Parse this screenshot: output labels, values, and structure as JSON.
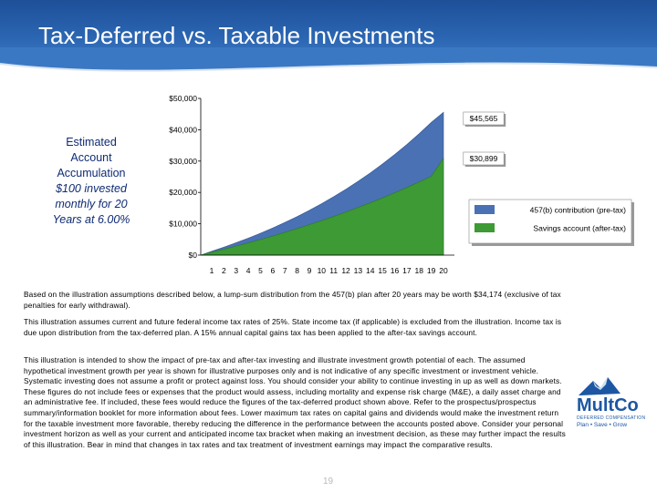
{
  "slide": {
    "title": "Tax-Deferred vs. Taxable Investments",
    "page_number": "19"
  },
  "caption": {
    "line1": "Estimated",
    "line2": "Account",
    "line3": "Accumulation",
    "line4": "$100 invested",
    "line5": "monthly for 20",
    "line6": "Years at 6.00%"
  },
  "chart_data": {
    "type": "area",
    "x": [
      1,
      2,
      3,
      4,
      5,
      6,
      7,
      8,
      9,
      10,
      11,
      12,
      13,
      14,
      15,
      16,
      17,
      18,
      19,
      20
    ],
    "categories": [
      "1",
      "2",
      "3",
      "4",
      "5",
      "6",
      "7",
      "8",
      "9",
      "10",
      "11",
      "12",
      "13",
      "14",
      "15",
      "16",
      "17",
      "18",
      "19",
      "20"
    ],
    "ylim": [
      0,
      50000
    ],
    "yticks": [
      "$0",
      "$10,000",
      "$20,000",
      "$30,000",
      "$40,000",
      "$50,000"
    ],
    "grid": false,
    "legend_position": "right",
    "series": [
      {
        "name": "457(b) contribution (pre-tax)",
        "color": "#4a71b3",
        "values": [
          1234,
          2544,
          3935,
          5411,
          6978,
          8641,
          10407,
          12281,
          14271,
          16384,
          18626,
          21007,
          23535,
          26218,
          29066,
          32090,
          35300,
          38708,
          42326,
          45565
        ],
        "end_label": "$45,565"
      },
      {
        "name": "Savings account (after-tax)",
        "color": "#3d9a34",
        "values": [
          923,
          1881,
          2876,
          3909,
          4982,
          6096,
          7253,
          8454,
          9701,
          10996,
          12341,
          13738,
          15188,
          16694,
          18258,
          19882,
          21569,
          23320,
          25138,
          30899
        ],
        "end_label": "$30,899"
      }
    ]
  },
  "paragraphs": {
    "p1": "Based on the illustration assumptions described below, a lump-sum distribution from the 457(b) plan after 20 years may be worth $34,174 (exclusive of tax penalties for early withdrawal).",
    "p2": "This illustration assumes current and future federal income tax rates of 25%. State income tax (if applicable) is excluded from the illustration. Income tax is due upon distribution from the tax-deferred plan. A 15% annual capital gains tax has been applied to the after-tax savings account.",
    "p3": "This illustration is intended to show the impact of pre-tax and after-tax investing and illustrate investment growth potential of each. The assumed hypothetical investment growth per year is shown for illustrative purposes only and is not indicative of any specific investment or investment vehicle. Systematic investing does not assume a profit or protect against loss. You should consider your ability to continue investing in up as well as down markets. These figures do not include fees or expenses that the product would assess, including mortality and expense risk charge (M&E), a daily asset charge and an administrative fee. If included, these fees would reduce the figures of the tax-deferred product shown above. Refer to the prospectus/prospectus summary/information booklet for more information about fees. Lower maximum tax rates on capital gains and dividends would make the investment return for the taxable investment more favorable, thereby reducing the difference in the performance between the accounts posted above. Consider your personal investment horizon as well as your current and anticipated income tax bracket when making an investment decision, as these may further impact the results of this illustration. Bear in mind that changes in tax rates and tax treatment of investment earnings may impact the comparative results."
  },
  "logo": {
    "name": "MultCo",
    "subtitle": "DEFERRED COMPENSATION",
    "tagline": "Plan • Save • Grow"
  },
  "colors": {
    "header_blue": "#2a64b0",
    "pretax_blue": "#4a71b3",
    "aftertax_green": "#3d9a34",
    "caption_navy": "#0f2b73"
  }
}
